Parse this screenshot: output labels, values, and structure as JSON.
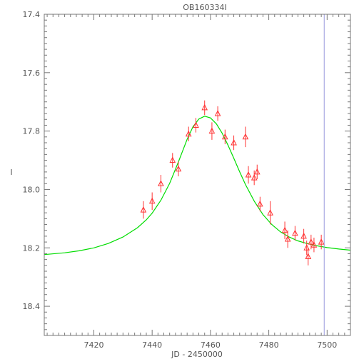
{
  "chart_data": {
    "type": "scatter",
    "title": "OB160334I",
    "xlabel": "JD - 2450000",
    "ylabel": "I",
    "xlim": [
      7403,
      7508
    ],
    "ylim": [
      18.5,
      17.4
    ],
    "y_inverted": true,
    "x_ticks": [
      7420,
      7440,
      7460,
      7480,
      7500
    ],
    "y_ticks": [
      17.4,
      17.6,
      17.8,
      18.0,
      18.2,
      18.4
    ],
    "y_tick_labels": [
      "17.4",
      "17.6",
      "17.8",
      "18.0",
      "18.2",
      "18.4"
    ],
    "vertical_line": {
      "x": 7499,
      "color": "#9999dd"
    },
    "model_curve": {
      "color": "#00dd00",
      "x": [
        7403,
        7410,
        7415,
        7420,
        7425,
        7430,
        7435,
        7438,
        7440,
        7443,
        7446,
        7449,
        7452,
        7454,
        7456,
        7458,
        7460,
        7462,
        7464,
        7466,
        7468,
        7470,
        7472,
        7475,
        7478,
        7481,
        7484,
        7487,
        7490,
        7493,
        7496,
        7500,
        7504,
        7508
      ],
      "y": [
        18.223,
        18.217,
        18.21,
        18.2,
        18.185,
        18.163,
        18.131,
        18.104,
        18.081,
        18.037,
        17.979,
        17.906,
        17.828,
        17.785,
        17.759,
        17.749,
        17.755,
        17.775,
        17.807,
        17.848,
        17.893,
        17.939,
        17.983,
        18.04,
        18.086,
        18.12,
        18.145,
        18.163,
        18.176,
        18.185,
        18.192,
        18.199,
        18.204,
        18.208
      ]
    },
    "series": [
      {
        "color": "#ff3333",
        "marker": "triangle",
        "x": [
          7437.0,
          7440.0,
          7443.0,
          7447.0,
          7449.0,
          7452.5,
          7455.0,
          7458.0,
          7460.5,
          7462.5,
          7465.0,
          7468.0,
          7472.0,
          7473.0,
          7475.0,
          7476.0,
          7477.0,
          7480.5,
          7485.5,
          7486.5,
          7489.0,
          7492.0,
          7493.0,
          7493.5,
          7494.5,
          7495.5,
          7498.0
        ],
        "y": [
          18.07,
          18.04,
          17.98,
          17.9,
          17.93,
          17.81,
          17.78,
          17.72,
          17.8,
          17.74,
          17.82,
          17.84,
          17.82,
          17.95,
          17.96,
          17.94,
          18.05,
          18.08,
          18.14,
          18.17,
          18.15,
          18.16,
          18.2,
          18.23,
          18.18,
          18.19,
          18.18
        ],
        "yerr": [
          0.03,
          0.03,
          0.03,
          0.025,
          0.025,
          0.025,
          0.025,
          0.025,
          0.03,
          0.025,
          0.025,
          0.025,
          0.035,
          0.03,
          0.025,
          0.025,
          0.025,
          0.04,
          0.03,
          0.03,
          0.025,
          0.025,
          0.025,
          0.03,
          0.025,
          0.025,
          0.025
        ]
      }
    ]
  }
}
